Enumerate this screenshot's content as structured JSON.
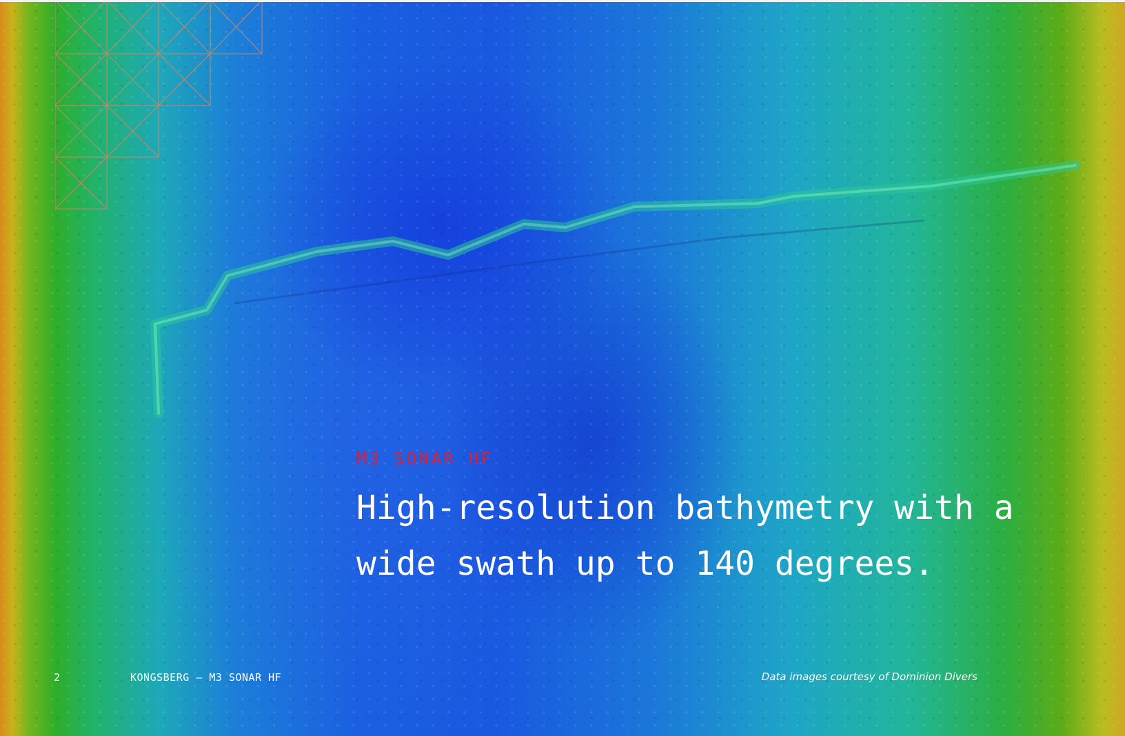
{
  "page": {
    "eyebrow": "M3 SONAR HF",
    "headline": "High-resolution bathymetry with a wide swath up to 140 degrees."
  },
  "footer": {
    "page_number": "2",
    "running_title": "KONGSBERG – M3 SONAR HF",
    "credit": "Data images courtesy of Dominion Divers"
  },
  "colors": {
    "accent": "#d8203a",
    "text": "#ffffff",
    "grid_lines": "#c8896a",
    "deep": "#1a58e0",
    "shallow": "#2cae40"
  }
}
